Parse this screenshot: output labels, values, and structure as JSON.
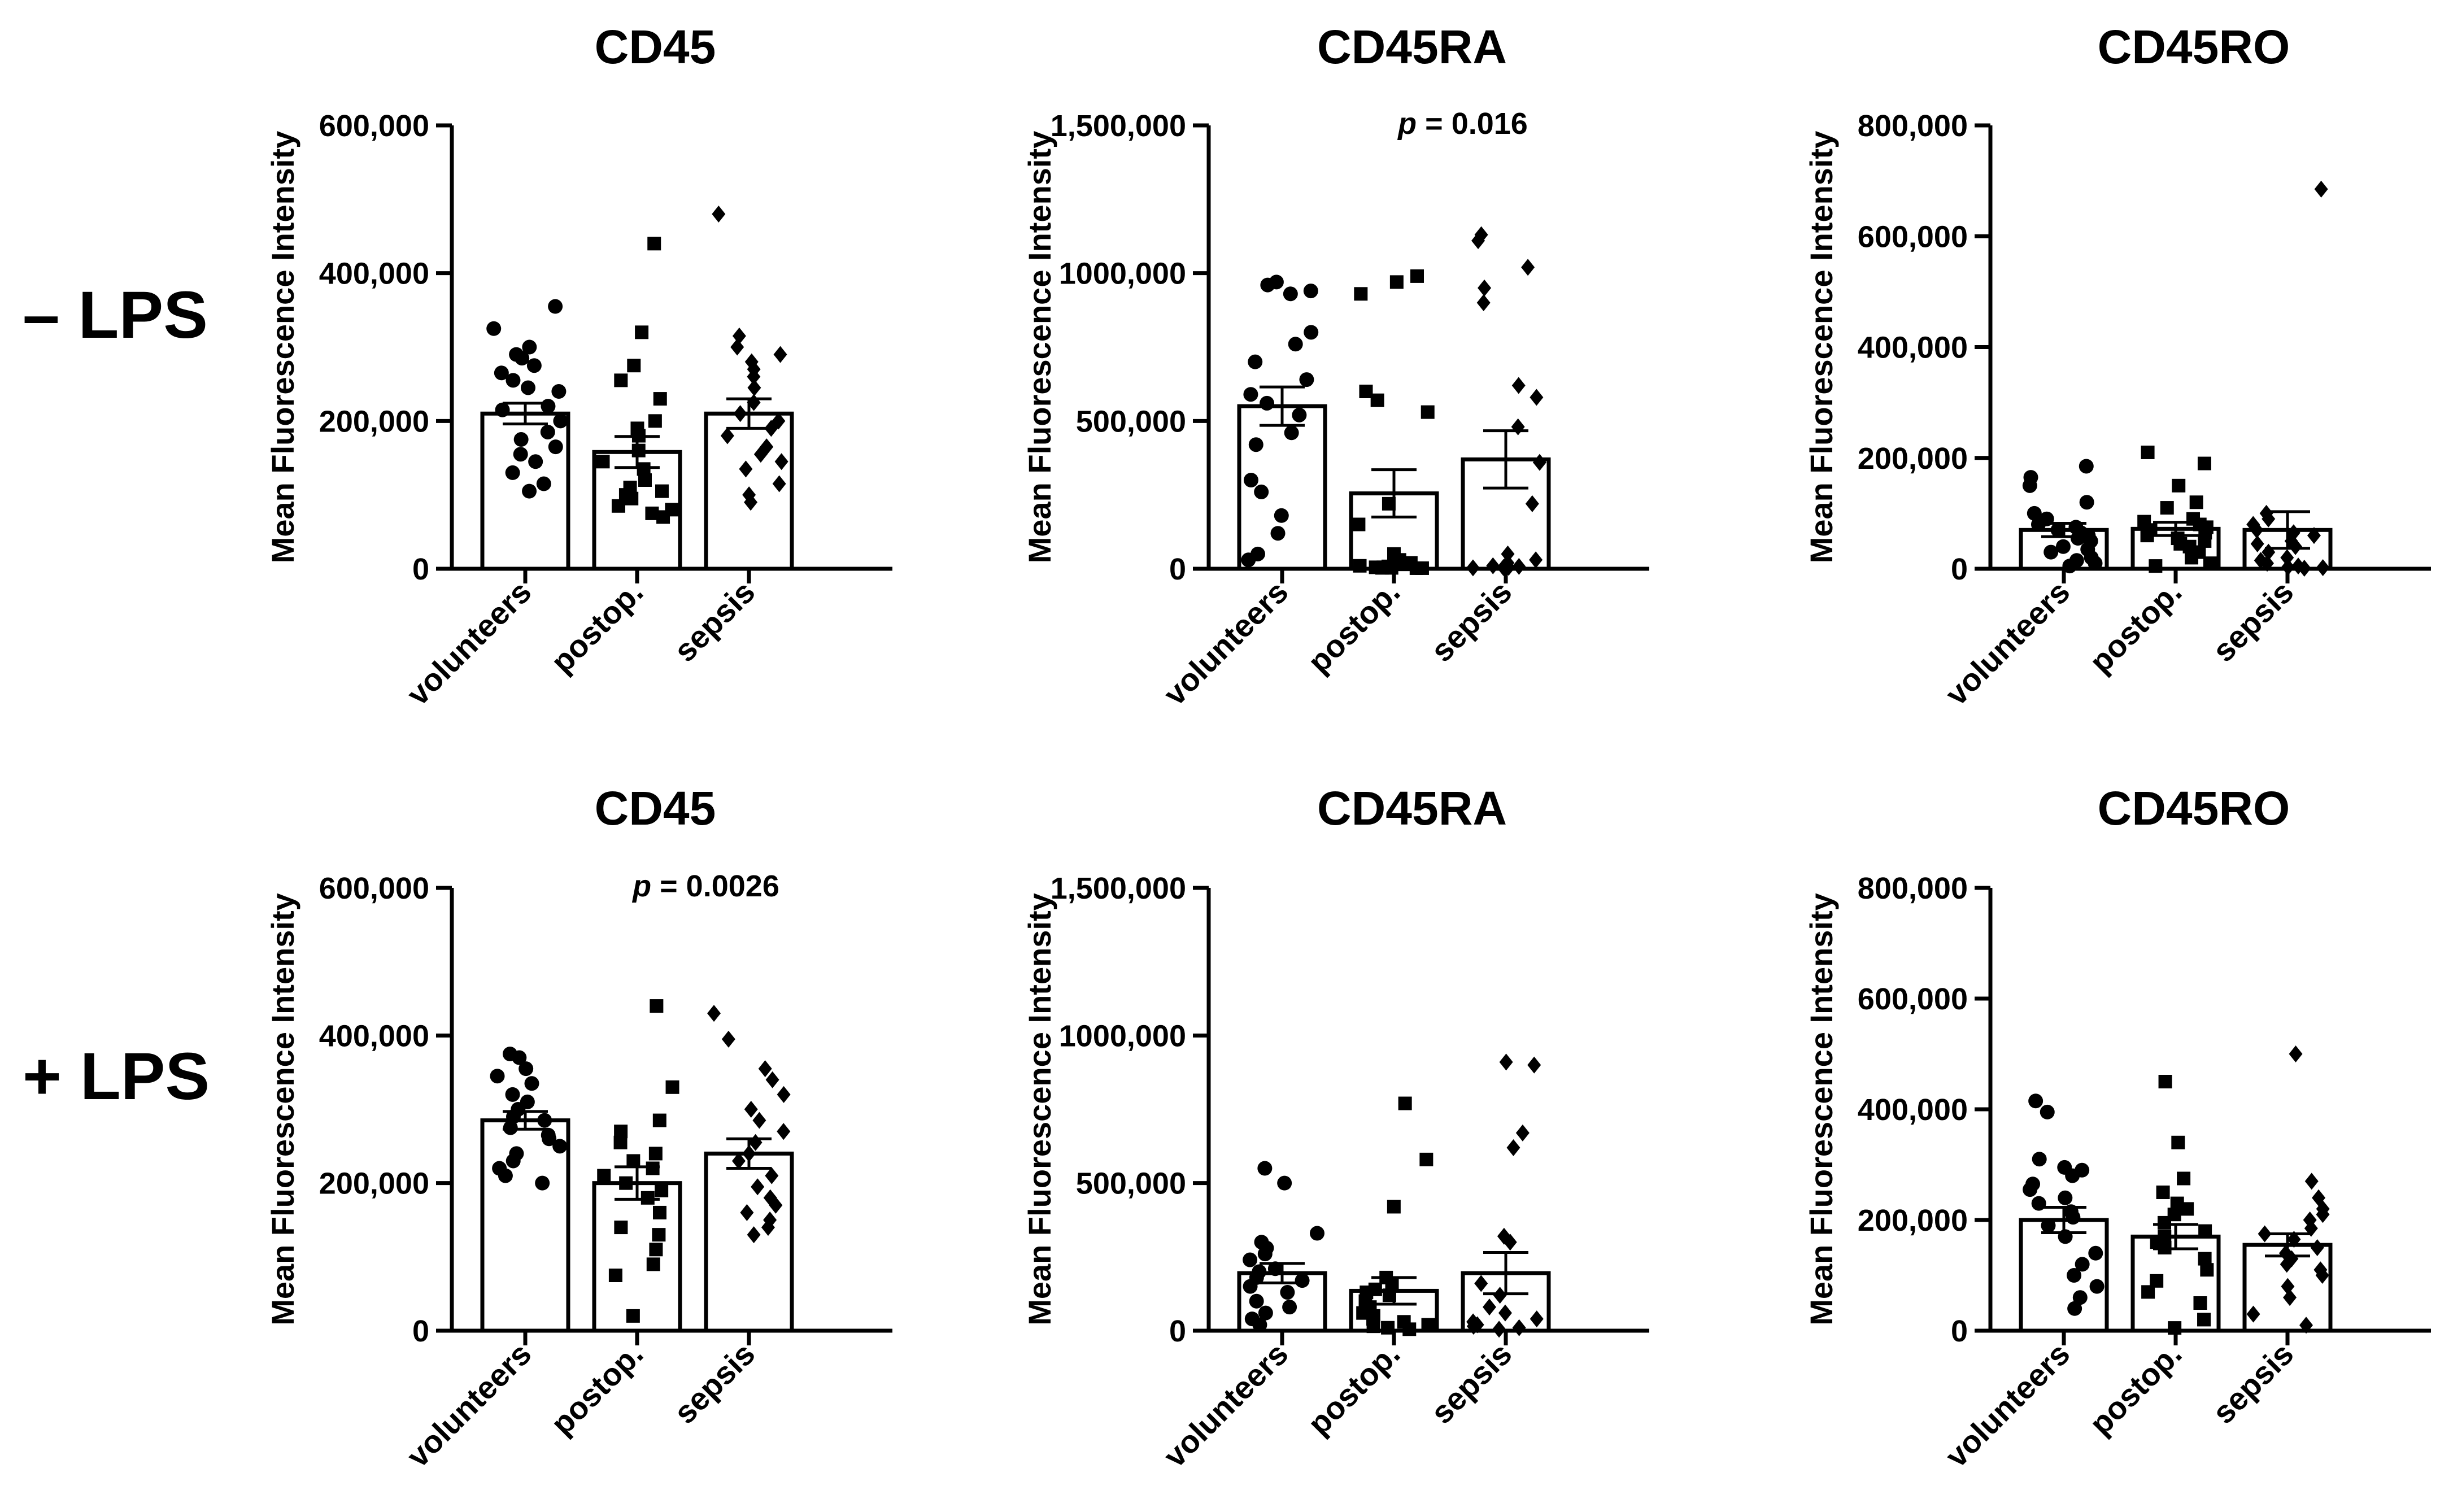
{
  "row_labels": [
    "– LPS",
    "+ LPS"
  ],
  "chart_data": [
    {
      "type": "bar",
      "id": "p1",
      "row": 0,
      "col": 0,
      "title": "CD45",
      "ylabel": "Mean Fluorescence Intensity",
      "categories": [
        "volunteers",
        "postop.",
        "sepsis"
      ],
      "ylim": [
        0,
        600000
      ],
      "yticks": [
        0,
        200000,
        400000,
        600000
      ],
      "ytick_labels": [
        "0",
        "200,000",
        "400,000",
        "600,000"
      ],
      "p_value": null,
      "series": [
        {
          "name": "volunteers",
          "marker": "circle",
          "mean": 210000,
          "sem": 14000,
          "points": [
            355000,
            325000,
            300000,
            290000,
            285000,
            275000,
            265000,
            255000,
            245000,
            240000,
            220000,
            215000,
            200000,
            185000,
            175000,
            165000,
            155000,
            145000,
            130000,
            115000,
            105000
          ]
        },
        {
          "name": "postop.",
          "marker": "square",
          "mean": 158000,
          "sem": 21000,
          "points": [
            440000,
            320000,
            275000,
            255000,
            230000,
            200000,
            190000,
            180000,
            160000,
            145000,
            135000,
            120000,
            110000,
            105000,
            100000,
            95000,
            85000,
            80000,
            75000,
            70000
          ]
        },
        {
          "name": "sepsis",
          "marker": "diamond",
          "mean": 210000,
          "sem": 20000,
          "points": [
            480000,
            315000,
            300000,
            290000,
            280000,
            270000,
            260000,
            245000,
            225000,
            210000,
            200000,
            190000,
            180000,
            165000,
            155000,
            145000,
            135000,
            115000,
            100000,
            90000
          ]
        }
      ]
    },
    {
      "type": "bar",
      "id": "p2",
      "row": 0,
      "col": 1,
      "title": "CD45RA",
      "ylabel": "Mean Fluorescence Intensity",
      "categories": [
        "volunteers",
        "postop.",
        "sepsis"
      ],
      "ylim": [
        0,
        1500000
      ],
      "yticks": [
        0,
        500000,
        1000000,
        1500000
      ],
      "ytick_labels": [
        "0",
        "500,000",
        "1000,000",
        "1,500,000"
      ],
      "p_value": "0.016",
      "series": [
        {
          "name": "volunteers",
          "marker": "circle",
          "mean": 550000,
          "sem": 65000,
          "points": [
            970000,
            960000,
            940000,
            930000,
            800000,
            760000,
            700000,
            640000,
            590000,
            560000,
            520000,
            460000,
            420000,
            300000,
            260000,
            180000,
            120000,
            50000,
            30000
          ]
        },
        {
          "name": "postop.",
          "marker": "square",
          "mean": 255000,
          "sem": 80000,
          "points": [
            990000,
            970000,
            930000,
            600000,
            570000,
            530000,
            220000,
            150000,
            50000,
            30000,
            20000,
            15000,
            10000,
            8000,
            5000,
            5000,
            3000,
            3000,
            2000,
            2000
          ]
        },
        {
          "name": "sepsis",
          "marker": "diamond",
          "mean": 370000,
          "sem": 97000,
          "points": [
            1130000,
            1110000,
            1020000,
            950000,
            900000,
            620000,
            580000,
            480000,
            360000,
            220000,
            50000,
            30000,
            20000,
            10000,
            8000,
            5000,
            4000,
            3000
          ]
        }
      ]
    },
    {
      "type": "bar",
      "id": "p3",
      "row": 0,
      "col": 2,
      "title": "CD45RO",
      "ylabel": "Mean Fluorescence Intensity",
      "categories": [
        "volunteers",
        "postop.",
        "sepsis"
      ],
      "ylim": [
        0,
        800000
      ],
      "yticks": [
        0,
        200000,
        400000,
        600000,
        800000
      ],
      "ytick_labels": [
        "0",
        "200,000",
        "400,000",
        "600,000",
        "800,000"
      ],
      "p_value": null,
      "series": [
        {
          "name": "volunteers",
          "marker": "circle",
          "mean": 70000,
          "sem": 12000,
          "points": [
            185000,
            165000,
            150000,
            120000,
            100000,
            90000,
            80000,
            75000,
            70000,
            65000,
            60000,
            55000,
            50000,
            40000,
            35000,
            30000,
            20000,
            15000,
            10000,
            5000
          ]
        },
        {
          "name": "postop.",
          "marker": "square",
          "mean": 72000,
          "sem": 12000,
          "points": [
            210000,
            190000,
            150000,
            120000,
            110000,
            90000,
            85000,
            80000,
            75000,
            70000,
            65000,
            60000,
            55000,
            50000,
            45000,
            40000,
            30000,
            20000,
            10000,
            5000
          ]
        },
        {
          "name": "sepsis",
          "marker": "diamond",
          "mean": 70000,
          "sem": 33000,
          "points": [
            685000,
            100000,
            90000,
            80000,
            70000,
            65000,
            60000,
            50000,
            45000,
            40000,
            30000,
            20000,
            15000,
            10000,
            5000,
            3000,
            2000,
            1000
          ]
        }
      ]
    },
    {
      "type": "bar",
      "id": "p4",
      "row": 1,
      "col": 0,
      "title": "CD45",
      "ylabel": "Mean Fluorescence Intensity",
      "categories": [
        "volunteers",
        "postop.",
        "sepsis"
      ],
      "ylim": [
        0,
        600000
      ],
      "yticks": [
        0,
        200000,
        400000,
        600000
      ],
      "ytick_labels": [
        "0",
        "200,000",
        "400,000",
        "600,000"
      ],
      "p_value": "0.0026",
      "series": [
        {
          "name": "volunteers",
          "marker": "circle",
          "mean": 285000,
          "sem": 12000,
          "points": [
            375000,
            370000,
            355000,
            345000,
            335000,
            320000,
            310000,
            300000,
            290000,
            285000,
            275000,
            265000,
            260000,
            250000,
            240000,
            230000,
            220000,
            210000,
            200000
          ]
        },
        {
          "name": "postop.",
          "marker": "square",
          "mean": 200000,
          "sem": 22000,
          "points": [
            440000,
            330000,
            285000,
            270000,
            255000,
            240000,
            230000,
            220000,
            210000,
            200000,
            190000,
            180000,
            160000,
            140000,
            130000,
            110000,
            90000,
            75000,
            20000
          ]
        },
        {
          "name": "sepsis",
          "marker": "diamond",
          "mean": 240000,
          "sem": 20000,
          "points": [
            430000,
            395000,
            355000,
            340000,
            320000,
            300000,
            285000,
            270000,
            255000,
            240000,
            230000,
            210000,
            195000,
            180000,
            170000,
            160000,
            150000,
            140000,
            130000
          ]
        }
      ]
    },
    {
      "type": "bar",
      "id": "p5",
      "row": 1,
      "col": 1,
      "title": "CD45RA",
      "ylabel": "Mean Fluorescence Intensity",
      "categories": [
        "volunteers",
        "postop.",
        "sepsis"
      ],
      "ylim": [
        0,
        1500000
      ],
      "yticks": [
        0,
        500000,
        1000000,
        1500000
      ],
      "ytick_labels": [
        "0",
        "500,000",
        "1000,000",
        "1,500,000"
      ],
      "p_value": null,
      "series": [
        {
          "name": "volunteers",
          "marker": "circle",
          "mean": 195000,
          "sem": 33000,
          "points": [
            550000,
            500000,
            330000,
            300000,
            280000,
            260000,
            240000,
            210000,
            200000,
            180000,
            170000,
            150000,
            130000,
            100000,
            80000,
            60000,
            40000,
            20000
          ]
        },
        {
          "name": "postop.",
          "marker": "square",
          "mean": 135000,
          "sem": 45000,
          "points": [
            770000,
            580000,
            420000,
            180000,
            160000,
            140000,
            130000,
            120000,
            100000,
            80000,
            60000,
            50000,
            40000,
            30000,
            20000,
            15000,
            10000,
            5000
          ]
        },
        {
          "name": "sepsis",
          "marker": "diamond",
          "mean": 195000,
          "sem": 70000,
          "points": [
            910000,
            900000,
            670000,
            620000,
            320000,
            300000,
            160000,
            120000,
            80000,
            60000,
            40000,
            30000,
            20000,
            15000,
            10000,
            5000
          ]
        }
      ]
    },
    {
      "type": "bar",
      "id": "p6",
      "row": 1,
      "col": 2,
      "title": "CD45RO",
      "ylabel": "Mean Fluorescence Intensity",
      "categories": [
        "volunteers",
        "postop.",
        "sepsis"
      ],
      "ylim": [
        0,
        800000
      ],
      "yticks": [
        0,
        200000,
        400000,
        600000,
        800000
      ],
      "ytick_labels": [
        "0",
        "200,000",
        "400,000",
        "600,000",
        "800,000"
      ],
      "p_value": null,
      "series": [
        {
          "name": "volunteers",
          "marker": "circle",
          "mean": 200000,
          "sem": 23000,
          "points": [
            415000,
            395000,
            310000,
            295000,
            290000,
            280000,
            265000,
            255000,
            240000,
            230000,
            215000,
            205000,
            190000,
            170000,
            140000,
            120000,
            100000,
            80000,
            60000,
            40000
          ]
        },
        {
          "name": "postop.",
          "marker": "square",
          "mean": 170000,
          "sem": 22000,
          "points": [
            450000,
            340000,
            275000,
            250000,
            230000,
            220000,
            210000,
            195000,
            180000,
            170000,
            160000,
            150000,
            130000,
            110000,
            90000,
            70000,
            50000,
            20000,
            5000
          ]
        },
        {
          "name": "sepsis",
          "marker": "diamond",
          "mean": 155000,
          "sem": 20000,
          "points": [
            500000,
            270000,
            240000,
            220000,
            210000,
            200000,
            185000,
            175000,
            165000,
            150000,
            140000,
            130000,
            120000,
            110000,
            100000,
            80000,
            60000,
            30000,
            10000
          ]
        }
      ]
    }
  ]
}
